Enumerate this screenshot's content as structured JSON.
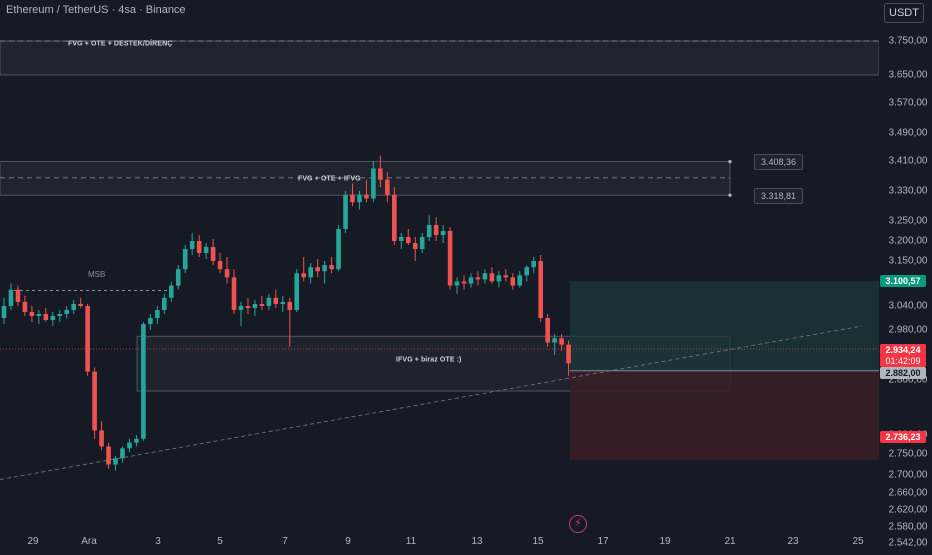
{
  "header": {
    "title": "Ethereum / TetherUS · 4sa · Binance",
    "currency_button": "USDT"
  },
  "annotations": {
    "zone_top": "FVG + OTE + DESTEK/DİRENÇ",
    "zone_mid": "FVG + OTE + IFVG",
    "zone_low": "IFVG + biraz OTE :)",
    "msb": "MSB",
    "box_upper_price": "3.408,36",
    "box_lower_price": "3.318,81"
  },
  "price_tags": {
    "take_profit": "3.100,57",
    "current": "2.934,24",
    "countdown": "01:42:09",
    "entry": "2.882,00",
    "stop": "2.736,23"
  },
  "colors": {
    "bullish": "#26a69a",
    "bearish": "#ef5350",
    "background": "#161a25",
    "zone_fill": "#2a2e39",
    "target_fill": "#1b3a3a",
    "stop_fill": "#3a1f26"
  },
  "chart_data": {
    "type": "candlestick",
    "title": "Ethereum / TetherUS · 4sa · Binance",
    "y_axis_ticks": [
      "3.750,00",
      "3.650,00",
      "3.570,00",
      "3.490,00",
      "3.410,00",
      "3.330,00",
      "3.250,00",
      "3.200,00",
      "3.150,00",
      "3.040,00",
      "2.980,00",
      "2.860,00",
      "2.800,00",
      "2.750,00",
      "2.700,00",
      "2.660,00",
      "2.620,00",
      "2.580,00",
      "2.542,00"
    ],
    "x_axis_ticks": [
      "29",
      "Ara",
      "3",
      "5",
      "7",
      "9",
      "11",
      "13",
      "15",
      "17",
      "19",
      "21",
      "23",
      "25"
    ],
    "ohlc": [
      [
        3010,
        3060,
        2995,
        3040
      ],
      [
        3040,
        3095,
        3030,
        3080
      ],
      [
        3080,
        3090,
        3040,
        3050
      ],
      [
        3050,
        3065,
        3015,
        3025
      ],
      [
        3025,
        3040,
        3000,
        3015
      ],
      [
        3015,
        3030,
        2995,
        3020
      ],
      [
        3020,
        3035,
        3000,
        3005
      ],
      [
        3005,
        3025,
        2990,
        3015
      ],
      [
        3015,
        3030,
        3000,
        3020
      ],
      [
        3020,
        3040,
        3010,
        3030
      ],
      [
        3030,
        3055,
        3020,
        3045
      ],
      [
        3045,
        3060,
        3035,
        3040
      ],
      [
        3040,
        3045,
        2870,
        2880
      ],
      [
        2880,
        2890,
        2790,
        2805
      ],
      [
        2805,
        2815,
        2760,
        2770
      ],
      [
        2770,
        2780,
        2715,
        2725
      ],
      [
        2725,
        2745,
        2710,
        2740
      ],
      [
        2740,
        2770,
        2730,
        2765
      ],
      [
        2765,
        2790,
        2755,
        2780
      ],
      [
        2780,
        2800,
        2770,
        2790
      ],
      [
        2790,
        3000,
        2785,
        2995
      ],
      [
        2995,
        3020,
        2980,
        3010
      ],
      [
        3010,
        3040,
        2995,
        3030
      ],
      [
        3030,
        3070,
        3020,
        3060
      ],
      [
        3060,
        3100,
        3050,
        3090
      ],
      [
        3090,
        3140,
        3080,
        3130
      ],
      [
        3130,
        3190,
        3120,
        3180
      ],
      [
        3180,
        3220,
        3165,
        3200
      ],
      [
        3200,
        3215,
        3160,
        3170
      ],
      [
        3170,
        3195,
        3155,
        3185
      ],
      [
        3185,
        3205,
        3140,
        3150
      ],
      [
        3150,
        3170,
        3120,
        3130
      ],
      [
        3130,
        3160,
        3095,
        3110
      ],
      [
        3110,
        3130,
        3020,
        3030
      ],
      [
        3030,
        3050,
        2990,
        3040
      ],
      [
        3040,
        3060,
        3020,
        3035
      ],
      [
        3035,
        3055,
        3015,
        3045
      ],
      [
        3045,
        3065,
        3030,
        3040
      ],
      [
        3040,
        3070,
        3030,
        3060
      ],
      [
        3060,
        3080,
        3035,
        3045
      ],
      [
        3045,
        3065,
        3025,
        3050
      ],
      [
        3050,
        3060,
        2940,
        3030
      ],
      [
        3030,
        3130,
        3025,
        3120
      ],
      [
        3120,
        3160,
        3100,
        3110
      ],
      [
        3110,
        3145,
        3095,
        3135
      ],
      [
        3135,
        3155,
        3110,
        3125
      ],
      [
        3125,
        3150,
        3095,
        3140
      ],
      [
        3140,
        3160,
        3120,
        3130
      ],
      [
        3130,
        3240,
        3125,
        3230
      ],
      [
        3230,
        3330,
        3220,
        3320
      ],
      [
        3320,
        3350,
        3290,
        3300
      ],
      [
        3300,
        3330,
        3280,
        3320
      ],
      [
        3320,
        3360,
        3300,
        3310
      ],
      [
        3310,
        3410,
        3300,
        3390
      ],
      [
        3390,
        3425,
        3340,
        3360
      ],
      [
        3360,
        3380,
        3300,
        3320
      ],
      [
        3320,
        3340,
        3190,
        3200
      ],
      [
        3200,
        3220,
        3180,
        3210
      ],
      [
        3210,
        3230,
        3190,
        3195
      ],
      [
        3195,
        3210,
        3150,
        3180
      ],
      [
        3180,
        3220,
        3170,
        3210
      ],
      [
        3210,
        3265,
        3200,
        3240
      ],
      [
        3240,
        3260,
        3200,
        3215
      ],
      [
        3215,
        3240,
        3195,
        3225
      ],
      [
        3225,
        3235,
        3080,
        3090
      ],
      [
        3090,
        3110,
        3070,
        3100
      ],
      [
        3100,
        3115,
        3080,
        3095
      ],
      [
        3095,
        3120,
        3085,
        3110
      ],
      [
        3110,
        3125,
        3090,
        3105
      ],
      [
        3105,
        3130,
        3095,
        3120
      ],
      [
        3120,
        3135,
        3095,
        3100
      ],
      [
        3100,
        3125,
        3085,
        3115
      ],
      [
        3115,
        3130,
        3100,
        3110
      ],
      [
        3110,
        3120,
        3080,
        3090
      ],
      [
        3090,
        3125,
        3085,
        3115
      ],
      [
        3115,
        3140,
        3100,
        3135
      ],
      [
        3135,
        3160,
        3120,
        3150
      ],
      [
        3150,
        3165,
        3000,
        3010
      ],
      [
        3010,
        3020,
        2940,
        2950
      ],
      [
        2950,
        2970,
        2920,
        2960
      ],
      [
        2960,
        2970,
        2930,
        2945
      ],
      [
        2945,
        2955,
        2870,
        2900
      ]
    ]
  }
}
